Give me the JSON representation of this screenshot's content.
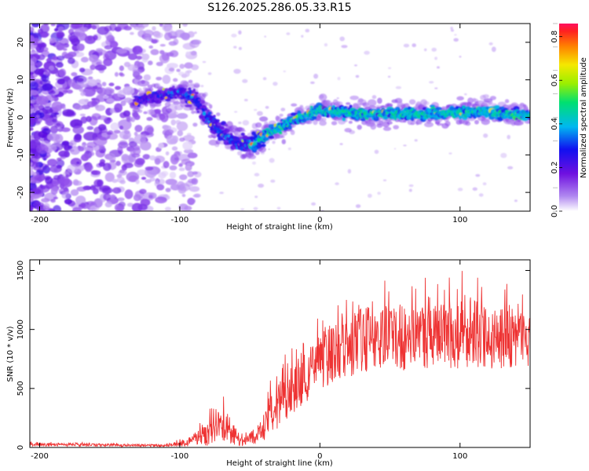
{
  "title": "S126.2025.286.05.33.R15",
  "colors": {
    "trace": "#ee3333",
    "axis": "#000000",
    "background": "#ffffff"
  },
  "chart_data": [
    {
      "type": "heatmap",
      "name": "spectrogram",
      "xlabel": "Height of straight line (km)",
      "ylabel": "Frequency (Hz)",
      "xlim": [
        -207,
        150
      ],
      "ylim": [
        -25,
        25
      ],
      "xticks": [
        -200,
        -100,
        0,
        100
      ],
      "yticks": [
        -20,
        -10,
        0,
        10,
        20
      ],
      "colorbar": {
        "label": "Normalized spectral amplitude",
        "range": [
          0,
          0.86
        ],
        "ticks": [
          0.0,
          0.2,
          0.4,
          0.6,
          0.8
        ],
        "tick_labels": [
          "0.0",
          "0.2",
          "0.4",
          "0.6",
          "0.8"
        ],
        "colormap": "rainbow"
      },
      "ridge": {
        "description": "dominant frequency ridge versus height",
        "points": [
          {
            "x": -130,
            "y": 4.5
          },
          {
            "x": -115,
            "y": 6.0
          },
          {
            "x": -100,
            "y": 6.5
          },
          {
            "x": -90,
            "y": 5.0
          },
          {
            "x": -80,
            "y": 0.0
          },
          {
            "x": -70,
            "y": -4.0
          },
          {
            "x": -60,
            "y": -6.5
          },
          {
            "x": -50,
            "y": -7.5
          },
          {
            "x": -40,
            "y": -5.0
          },
          {
            "x": -30,
            "y": -3.0
          },
          {
            "x": -20,
            "y": -1.0
          },
          {
            "x": -10,
            "y": 0.5
          },
          {
            "x": 0,
            "y": 2.0
          },
          {
            "x": 20,
            "y": 1.0
          },
          {
            "x": 50,
            "y": 1.0
          },
          {
            "x": 80,
            "y": 1.0
          },
          {
            "x": 110,
            "y": 1.5
          },
          {
            "x": 130,
            "y": 1.0
          },
          {
            "x": 150,
            "y": 0.5
          }
        ],
        "peak_amplitude": 0.85
      },
      "noise_region": {
        "x_from": -207,
        "x_to": -100,
        "amplitude": "0.1-0.3"
      }
    },
    {
      "type": "line",
      "name": "snr",
      "xlabel": "Height of straight line (km)",
      "ylabel": "SNR (10 * v/v)",
      "xlim": [
        -207,
        150
      ],
      "ylim": [
        0,
        1590
      ],
      "xticks": [
        -200,
        -100,
        0,
        100
      ],
      "yticks": [
        0,
        500,
        1000,
        1500
      ],
      "series": [
        {
          "name": "SNR",
          "envelope": [
            {
              "x": -207,
              "mean": 25,
              "spread": 15
            },
            {
              "x": -150,
              "mean": 20,
              "spread": 12
            },
            {
              "x": -110,
              "mean": 15,
              "spread": 10
            },
            {
              "x": -95,
              "mean": 40,
              "spread": 30
            },
            {
              "x": -85,
              "mean": 90,
              "spread": 80
            },
            {
              "x": -75,
              "mean": 150,
              "spread": 130
            },
            {
              "x": -68,
              "mean": 200,
              "spread": 160
            },
            {
              "x": -62,
              "mean": 110,
              "spread": 90
            },
            {
              "x": -55,
              "mean": 45,
              "spread": 40
            },
            {
              "x": -45,
              "mean": 100,
              "spread": 80
            },
            {
              "x": -35,
              "mean": 280,
              "spread": 180
            },
            {
              "x": -25,
              "mean": 430,
              "spread": 200
            },
            {
              "x": -15,
              "mean": 530,
              "spread": 200
            },
            {
              "x": -5,
              "mean": 660,
              "spread": 230
            },
            {
              "x": 5,
              "mean": 770,
              "spread": 250
            },
            {
              "x": 15,
              "mean": 850,
              "spread": 280
            },
            {
              "x": 25,
              "mean": 910,
              "spread": 300
            },
            {
              "x": 40,
              "mean": 940,
              "spread": 280
            },
            {
              "x": 60,
              "mean": 930,
              "spread": 280
            },
            {
              "x": 80,
              "mean": 950,
              "spread": 280
            },
            {
              "x": 100,
              "mean": 970,
              "spread": 300
            },
            {
              "x": 120,
              "mean": 950,
              "spread": 280
            },
            {
              "x": 135,
              "mean": 920,
              "spread": 260
            },
            {
              "x": 150,
              "mean": 900,
              "spread": 250
            }
          ]
        }
      ]
    }
  ]
}
